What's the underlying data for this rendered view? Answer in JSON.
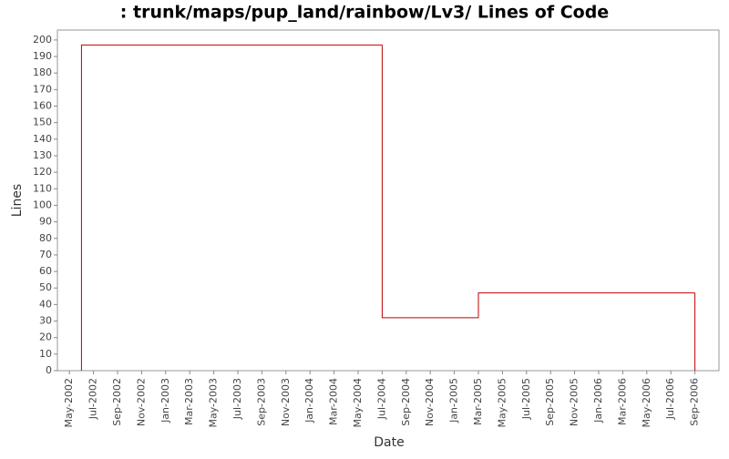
{
  "chart_data": {
    "type": "step",
    "title": ": trunk/maps/pup_land/rainbow/Lv3/ Lines of Code",
    "x_label": "Date",
    "y_label": "Lines",
    "series": [
      {
        "name": "Lines",
        "color": "#c00000",
        "x": [
          "Jun-2002",
          "Jul-2004",
          "Mar-2005",
          "Sep-2006"
        ],
        "values": [
          197,
          32,
          47,
          0
        ]
      }
    ],
    "xlim": [
      "Apr-2002",
      "Nov-2006"
    ],
    "xticks": [
      "May-2002",
      "Jul-2002",
      "Sep-2002",
      "Nov-2002",
      "Jan-2003",
      "Mar-2003",
      "May-2003",
      "Jul-2003",
      "Sep-2003",
      "Nov-2003",
      "Jan-2004",
      "Mar-2004",
      "May-2004",
      "Jul-2004",
      "Sep-2004",
      "Nov-2004",
      "Jan-2005",
      "Mar-2005",
      "May-2005",
      "Jul-2005",
      "Sep-2005",
      "Nov-2005",
      "Jan-2006",
      "Mar-2006",
      "May-2006",
      "Jul-2006",
      "Sep-2006"
    ],
    "ylim": [
      0,
      206
    ],
    "yticks": [
      0,
      10,
      20,
      30,
      40,
      50,
      60,
      70,
      80,
      90,
      100,
      110,
      120,
      130,
      140,
      150,
      160,
      170,
      180,
      190,
      200
    ]
  }
}
